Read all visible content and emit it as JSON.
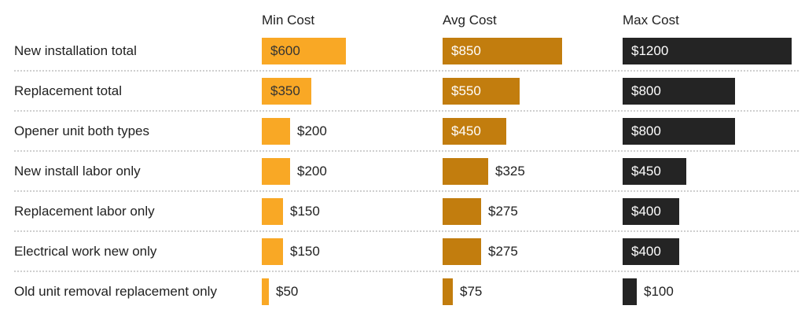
{
  "chart_data": {
    "type": "bar",
    "orientation": "horizontal",
    "columns": [
      "Min Cost",
      "Avg Cost",
      "Max Cost"
    ],
    "categories": [
      "New installation total",
      "Replacement total",
      "Opener unit both types",
      "New install labor only",
      "Replacement labor only",
      "Electrical work new only",
      "Old unit removal replacement only"
    ],
    "series": [
      {
        "key": "min",
        "name": "Min Cost",
        "color": "#F9A825",
        "value_text_color_inside": "#333333",
        "values": [
          600,
          350,
          200,
          200,
          150,
          150,
          50
        ]
      },
      {
        "key": "avg",
        "name": "Avg Cost",
        "color": "#C27D0E",
        "value_text_color_inside": "#FFFFFF",
        "values": [
          850,
          550,
          450,
          325,
          275,
          275,
          75
        ]
      },
      {
        "key": "max",
        "name": "Max Cost",
        "color": "#242424",
        "value_text_color_inside": "#FFFFFF",
        "values": [
          1200,
          800,
          800,
          450,
          400,
          400,
          100
        ]
      }
    ],
    "value_prefix": "$",
    "xmax": 1200,
    "grid": false,
    "legend_position": "top-as-column-headers",
    "text_color": "#212121",
    "outside_value_color": "#212121",
    "divider_color": "#CFCFCF",
    "background": "#FFFFFF"
  }
}
